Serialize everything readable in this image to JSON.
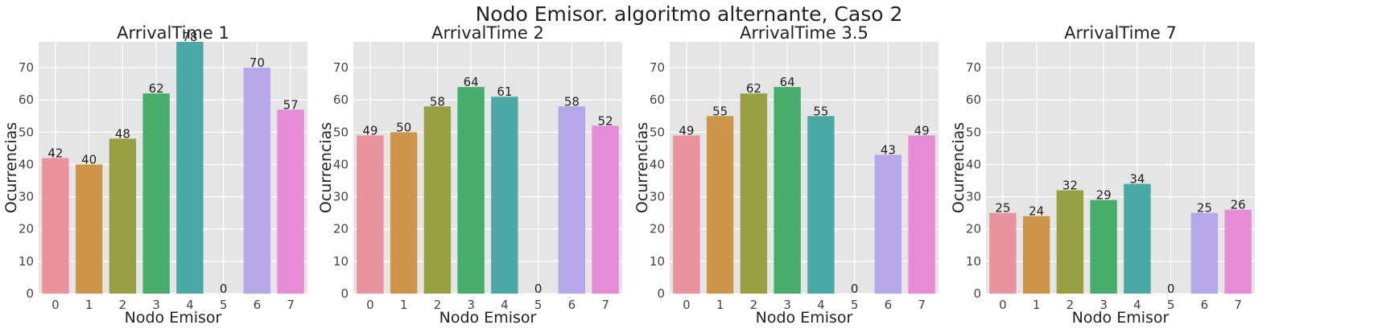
{
  "figure": {
    "suptitle": "Nodo Emisor. algoritmo alternante, Caso 2"
  },
  "colors": [
    "#e9939e",
    "#cc9548",
    "#96a042",
    "#48ad6a",
    "#4aa9a4",
    "#4aa6c2",
    "#b5a7ea",
    "#e68cd6"
  ],
  "chart_data": [
    {
      "type": "bar",
      "title": "ArrivalTime 1",
      "xlabel": "Nodo Emisor",
      "ylabel": "Ocurrencias",
      "categories": [
        "0",
        "1",
        "2",
        "3",
        "4",
        "5",
        "6",
        "7"
      ],
      "values": [
        42,
        40,
        48,
        62,
        78,
        0,
        70,
        57
      ],
      "ylim": [
        0,
        78
      ],
      "yticks": [
        0,
        10,
        20,
        30,
        40,
        50,
        60,
        70
      ],
      "grid": true
    },
    {
      "type": "bar",
      "title": "ArrivalTime 2",
      "xlabel": "Nodo Emisor",
      "ylabel": "Ocurrencias",
      "categories": [
        "0",
        "1",
        "2",
        "3",
        "4",
        "5",
        "6",
        "7"
      ],
      "values": [
        49,
        50,
        58,
        64,
        61,
        0,
        58,
        52
      ],
      "ylim": [
        0,
        78
      ],
      "yticks": [
        0,
        10,
        20,
        30,
        40,
        50,
        60,
        70
      ],
      "grid": true
    },
    {
      "type": "bar",
      "title": "ArrivalTime 3.5",
      "xlabel": "Nodo Emisor",
      "ylabel": "Ocurrencias",
      "categories": [
        "0",
        "1",
        "2",
        "3",
        "4",
        "5",
        "6",
        "7"
      ],
      "values": [
        49,
        55,
        62,
        64,
        55,
        0,
        43,
        49
      ],
      "ylim": [
        0,
        78
      ],
      "yticks": [
        0,
        10,
        20,
        30,
        40,
        50,
        60,
        70
      ],
      "grid": true
    },
    {
      "type": "bar",
      "title": "ArrivalTime 7",
      "xlabel": "Nodo Emisor",
      "ylabel": "Ocurrencias",
      "categories": [
        "0",
        "1",
        "2",
        "3",
        "4",
        "5",
        "6",
        "7"
      ],
      "values": [
        25,
        24,
        32,
        29,
        34,
        0,
        25,
        26
      ],
      "ylim": [
        0,
        78
      ],
      "yticks": [
        0,
        10,
        20,
        30,
        40,
        50,
        60,
        70
      ],
      "grid": true
    }
  ]
}
